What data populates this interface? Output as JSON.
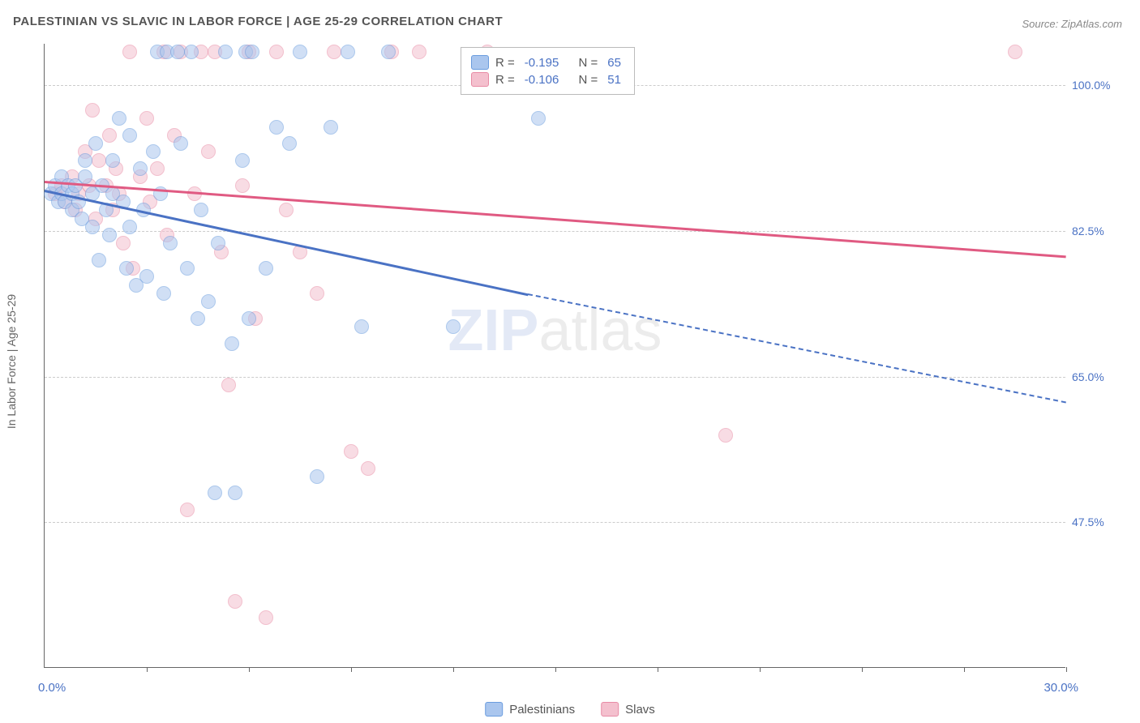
{
  "title": "PALESTINIAN VS SLAVIC IN LABOR FORCE | AGE 25-29 CORRELATION CHART",
  "source": "Source: ZipAtlas.com",
  "ylabel": "In Labor Force | Age 25-29",
  "watermark_a": "ZIP",
  "watermark_b": "atlas",
  "chart": {
    "type": "scatter",
    "background_color": "#ffffff",
    "grid_color": "#cccccc",
    "axis_color": "#666666",
    "tick_label_color": "#4a72c4",
    "tick_fontsize": 14,
    "title_fontsize": 15,
    "title_color": "#555555",
    "xlim": [
      0,
      30
    ],
    "xaxis_min_label": "0.0%",
    "xaxis_max_label": "30.0%",
    "ylim": [
      30,
      105
    ],
    "yticks": [
      47.5,
      65.0,
      82.5,
      100.0
    ],
    "ytick_labels": [
      "47.5%",
      "65.0%",
      "82.5%",
      "100.0%"
    ],
    "xtick_positions": [
      3,
      6,
      9,
      12,
      15,
      18,
      21,
      24,
      27,
      30
    ],
    "marker_radius": 9,
    "marker_opacity": 0.55,
    "trend_line_width": 3
  },
  "series": {
    "palestinians": {
      "label": "Palestinians",
      "fill": "#aac6ee",
      "stroke": "#6a9cde",
      "trend_color": "#4a72c4",
      "R": "-0.195",
      "N": "65",
      "trend": {
        "x1": 0,
        "y1": 87.5,
        "x2": 14.2,
        "y2": 75.0
      },
      "trend_ext": {
        "x1": 14.2,
        "y1": 75.0,
        "x2": 30,
        "y2": 62.0
      },
      "points": [
        [
          0.2,
          87
        ],
        [
          0.3,
          88
        ],
        [
          0.4,
          86
        ],
        [
          0.5,
          87
        ],
        [
          0.5,
          89
        ],
        [
          0.6,
          86
        ],
        [
          0.7,
          88
        ],
        [
          0.8,
          87
        ],
        [
          0.8,
          85
        ],
        [
          0.9,
          88
        ],
        [
          1.0,
          86
        ],
        [
          1.1,
          84
        ],
        [
          1.2,
          89
        ],
        [
          1.2,
          91
        ],
        [
          1.4,
          83
        ],
        [
          1.4,
          87
        ],
        [
          1.5,
          93
        ],
        [
          1.6,
          79
        ],
        [
          1.7,
          88
        ],
        [
          1.8,
          85
        ],
        [
          1.9,
          82
        ],
        [
          2.0,
          91
        ],
        [
          2.0,
          87
        ],
        [
          2.2,
          96
        ],
        [
          2.3,
          86
        ],
        [
          2.4,
          78
        ],
        [
          2.5,
          94
        ],
        [
          2.5,
          83
        ],
        [
          2.7,
          76
        ],
        [
          2.8,
          90
        ],
        [
          2.9,
          85
        ],
        [
          3.0,
          77
        ],
        [
          3.2,
          92
        ],
        [
          3.3,
          104
        ],
        [
          3.4,
          87
        ],
        [
          3.5,
          75
        ],
        [
          3.6,
          104
        ],
        [
          3.7,
          81
        ],
        [
          3.9,
          104
        ],
        [
          4.0,
          93
        ],
        [
          4.2,
          78
        ],
        [
          4.3,
          104
        ],
        [
          4.5,
          72
        ],
        [
          4.6,
          85
        ],
        [
          4.8,
          74
        ],
        [
          5.0,
          51
        ],
        [
          5.1,
          81
        ],
        [
          5.3,
          104
        ],
        [
          5.5,
          69
        ],
        [
          5.6,
          51
        ],
        [
          5.8,
          91
        ],
        [
          5.9,
          104
        ],
        [
          6.0,
          72
        ],
        [
          6.1,
          104
        ],
        [
          6.5,
          78
        ],
        [
          6.8,
          95
        ],
        [
          7.2,
          93
        ],
        [
          7.5,
          104
        ],
        [
          8.0,
          53
        ],
        [
          8.4,
          95
        ],
        [
          8.9,
          104
        ],
        [
          9.3,
          71
        ],
        [
          10.1,
          104
        ],
        [
          12.0,
          71
        ],
        [
          14.5,
          96
        ]
      ]
    },
    "slavs": {
      "label": "Slavs",
      "fill": "#f4c0ce",
      "stroke": "#e88ba5",
      "trend_color": "#e05a82",
      "R": "-0.106",
      "N": "51",
      "trend": {
        "x1": 0,
        "y1": 88.5,
        "x2": 30,
        "y2": 79.5
      },
      "points": [
        [
          0.3,
          87
        ],
        [
          0.5,
          88
        ],
        [
          0.6,
          86
        ],
        [
          0.8,
          89
        ],
        [
          0.9,
          85
        ],
        [
          1.0,
          87
        ],
        [
          1.2,
          92
        ],
        [
          1.3,
          88
        ],
        [
          1.4,
          97
        ],
        [
          1.5,
          84
        ],
        [
          1.6,
          91
        ],
        [
          1.8,
          88
        ],
        [
          1.9,
          94
        ],
        [
          2.0,
          85
        ],
        [
          2.1,
          90
        ],
        [
          2.2,
          87
        ],
        [
          2.3,
          81
        ],
        [
          2.5,
          104
        ],
        [
          2.6,
          78
        ],
        [
          2.8,
          89
        ],
        [
          3.0,
          96
        ],
        [
          3.1,
          86
        ],
        [
          3.3,
          90
        ],
        [
          3.5,
          104
        ],
        [
          3.6,
          82
        ],
        [
          3.8,
          94
        ],
        [
          4.0,
          104
        ],
        [
          4.2,
          49
        ],
        [
          4.4,
          87
        ],
        [
          4.6,
          104
        ],
        [
          4.8,
          92
        ],
        [
          5.0,
          104
        ],
        [
          5.2,
          80
        ],
        [
          5.4,
          64
        ],
        [
          5.6,
          38
        ],
        [
          5.8,
          88
        ],
        [
          6.0,
          104
        ],
        [
          6.2,
          72
        ],
        [
          6.5,
          36
        ],
        [
          6.8,
          104
        ],
        [
          7.1,
          85
        ],
        [
          7.5,
          80
        ],
        [
          8.0,
          75
        ],
        [
          8.5,
          104
        ],
        [
          9.0,
          56
        ],
        [
          9.5,
          54
        ],
        [
          10.2,
          104
        ],
        [
          11.0,
          104
        ],
        [
          13.0,
          104
        ],
        [
          20.0,
          58
        ],
        [
          28.5,
          104
        ]
      ]
    }
  },
  "stats_box": {
    "r_label": "R =",
    "n_label": "N ="
  }
}
